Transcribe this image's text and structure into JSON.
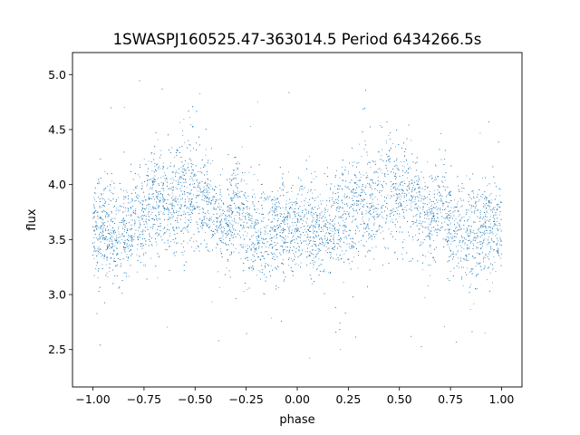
{
  "chart_data": {
    "type": "scatter",
    "title": "1SWASPJ160525.47-363014.5 Period 6434266.5s",
    "xlabel": "phase",
    "ylabel": "flux",
    "xlim": [
      -1.1,
      1.1
    ],
    "ylim": [
      2.16,
      5.2
    ],
    "x_ticks": [
      -1.0,
      -0.75,
      -0.5,
      -0.25,
      0.0,
      0.25,
      0.5,
      0.75,
      1.0
    ],
    "x_tick_labels": [
      "−1.00",
      "−0.75",
      "−0.50",
      "−0.25",
      "0.00",
      "0.25",
      "0.50",
      "0.75",
      "1.00"
    ],
    "y_ticks": [
      2.5,
      3.0,
      3.5,
      4.0,
      4.5,
      5.0
    ],
    "y_tick_labels": [
      "2.5",
      "3.0",
      "3.5",
      "4.0",
      "4.5",
      "5.0"
    ],
    "grid": false,
    "legend": "none",
    "marker_color": "#1f77b4",
    "series": [
      {
        "x_range": [
          -1.0,
          1.0
        ],
        "folded_period": 1.0,
        "profile": [
          {
            "phase": 0.0,
            "median": 3.55,
            "spread": 0.28
          },
          {
            "phase": 0.05,
            "median": 3.62,
            "spread": 0.3
          },
          {
            "phase": 0.1,
            "median": 3.52,
            "spread": 0.3
          },
          {
            "phase": 0.15,
            "median": 3.58,
            "spread": 0.28
          },
          {
            "phase": 0.2,
            "median": 3.68,
            "spread": 0.3
          },
          {
            "phase": 0.25,
            "median": 3.72,
            "spread": 0.3
          },
          {
            "phase": 0.3,
            "median": 3.88,
            "spread": 0.32
          },
          {
            "phase": 0.35,
            "median": 3.82,
            "spread": 0.3
          },
          {
            "phase": 0.4,
            "median": 3.9,
            "spread": 0.34
          },
          {
            "phase": 0.45,
            "median": 3.95,
            "spread": 0.42
          },
          {
            "phase": 0.5,
            "median": 3.88,
            "spread": 0.3
          },
          {
            "phase": 0.55,
            "median": 3.9,
            "spread": 0.3
          },
          {
            "phase": 0.6,
            "median": 3.72,
            "spread": 0.3
          },
          {
            "phase": 0.65,
            "median": 3.62,
            "spread": 0.28
          },
          {
            "phase": 0.7,
            "median": 3.9,
            "spread": 0.3
          },
          {
            "phase": 0.75,
            "median": 3.6,
            "spread": 0.3
          },
          {
            "phase": 0.8,
            "median": 3.52,
            "spread": 0.32
          },
          {
            "phase": 0.85,
            "median": 3.55,
            "spread": 0.32
          },
          {
            "phase": 0.9,
            "median": 3.6,
            "spread": 0.3
          },
          {
            "phase": 0.95,
            "median": 3.62,
            "spread": 0.28
          },
          {
            "phase": 1.0,
            "median": 3.55,
            "spread": 0.28
          }
        ],
        "point_count": 9000,
        "outlier_fraction": 0.02,
        "y_min": 2.3,
        "y_max": 5.05
      }
    ]
  }
}
